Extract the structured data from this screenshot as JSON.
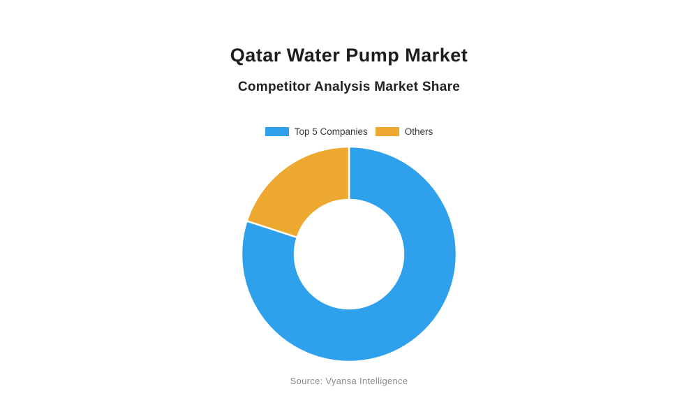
{
  "header": {
    "title": "Qatar Water Pump Market",
    "subtitle": "Competitor Analysis Market Share"
  },
  "legend": {
    "items": [
      {
        "label": "Top 5 Companies",
        "color": "#2FA0EB"
      },
      {
        "label": "Others",
        "color": "#EDA92F"
      }
    ]
  },
  "chart_data": {
    "type": "pie",
    "title": "Qatar Water Pump Market",
    "subtitle": "Competitor Analysis Market Share",
    "categories": [
      "Top 5 Companies",
      "Others"
    ],
    "values": [
      80,
      20
    ],
    "unit": "percent-estimated",
    "colors": [
      "#2FA0EB",
      "#EDA92F"
    ],
    "donut": true,
    "cutout_percent": 50,
    "start_angle_deg": 0,
    "direction": "clockwise",
    "segment_border_color": "#ffffff",
    "legend_position": "top"
  },
  "footer": {
    "source": "Source: Vyansa Intelligence"
  }
}
